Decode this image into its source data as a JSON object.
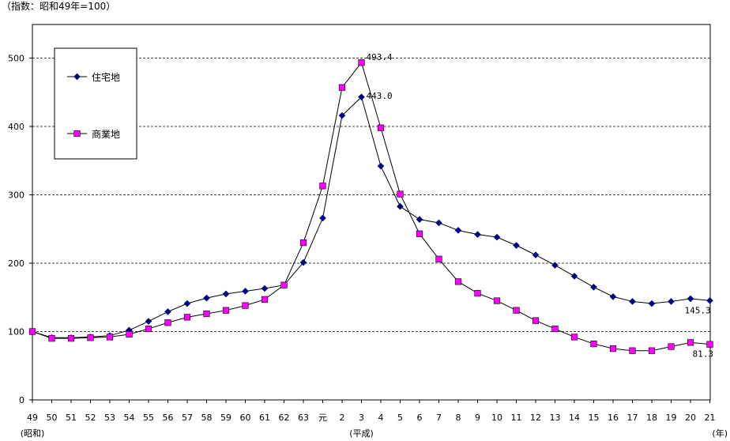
{
  "chart_data": {
    "type": "line",
    "unit_note": "（指数：昭和49年=100）",
    "x_unit_label": "(年)",
    "categories": [
      "49",
      "50",
      "51",
      "52",
      "53",
      "54",
      "55",
      "56",
      "57",
      "58",
      "59",
      "60",
      "61",
      "62",
      "63",
      "元",
      "2",
      "3",
      "4",
      "5",
      "6",
      "7",
      "8",
      "9",
      "10",
      "11",
      "12",
      "13",
      "14",
      "15",
      "16",
      "17",
      "18",
      "19",
      "20",
      "21"
    ],
    "era_labels": [
      {
        "text": "(昭和)",
        "at": "49"
      },
      {
        "text": "(平成)",
        "at": "3"
      }
    ],
    "ylim": [
      0,
      500
    ],
    "yticks": [
      0,
      100,
      200,
      300,
      400,
      500
    ],
    "grid": "dashed horizontal",
    "legend_placement": "top-left",
    "series": [
      {
        "name": "住宅地",
        "color": "#00007f",
        "marker": "diamond",
        "values": [
          100,
          91,
          91,
          92,
          94,
          102,
          115,
          129,
          141,
          149,
          155,
          159,
          163,
          168,
          201,
          266,
          416,
          443.0,
          342,
          283,
          264,
          259,
          248,
          242,
          238,
          226,
          212,
          197,
          181,
          165,
          151,
          144,
          141,
          144,
          148,
          145.3
        ]
      },
      {
        "name": "商業地",
        "color": "#ff00ff",
        "marker": "square",
        "values": [
          100,
          90,
          90,
          91,
          92,
          96,
          104,
          113,
          121,
          126,
          131,
          138,
          147,
          168,
          230,
          313,
          457,
          493.4,
          398,
          301,
          243,
          206,
          173,
          156,
          145,
          131,
          116,
          104,
          92,
          82,
          75,
          72,
          72,
          78,
          84,
          81.3
        ]
      }
    ],
    "annotations": [
      {
        "text": "493.4",
        "series": "商業地",
        "at": "3"
      },
      {
        "text": "443.0",
        "series": "住宅地",
        "at": "3"
      },
      {
        "text": "145.3",
        "series": "住宅地",
        "at": "21"
      },
      {
        "text": "81.3",
        "series": "商業地",
        "at": "21"
      }
    ]
  }
}
